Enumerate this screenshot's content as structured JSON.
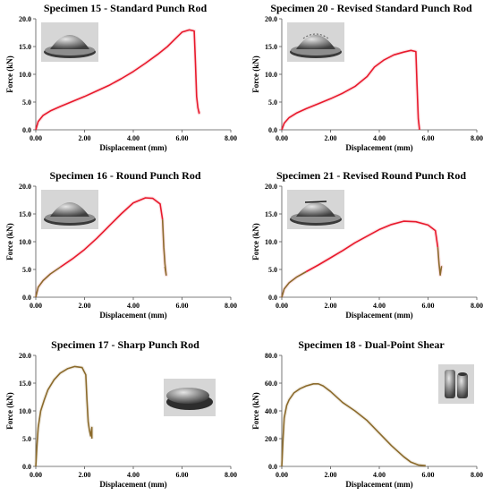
{
  "chart_data": [
    {
      "type": "line",
      "title": "Specimen 15 - Standard Punch Rod",
      "xlabel": "Displacement (mm)",
      "ylabel": "Force (kN)",
      "xlim": [
        0,
        8
      ],
      "ylim": [
        0,
        20
      ],
      "xticks": [
        "0.00",
        "2.00",
        "4.00",
        "6.00",
        "8.00"
      ],
      "yticks": [
        "0.0",
        "5.0",
        "10.0",
        "15.0",
        "20.0"
      ],
      "line_color": "#e8192c",
      "inset_photo": "dome-specimen",
      "series": [
        {
          "x": [
            0,
            0.1,
            0.3,
            0.6,
            1.0,
            1.5,
            2.0,
            2.5,
            3.0,
            3.5,
            4.0,
            4.5,
            5.0,
            5.4,
            5.7,
            6.0,
            6.3,
            6.5,
            6.55,
            6.6,
            6.65,
            6.7,
            6.7
          ],
          "y": [
            0,
            1.5,
            2.6,
            3.4,
            4.2,
            5.1,
            6.0,
            7.0,
            8.0,
            9.2,
            10.5,
            12.0,
            13.6,
            15.0,
            16.3,
            17.6,
            18.0,
            17.8,
            12.0,
            6.0,
            4.0,
            3.0,
            3.3
          ]
        }
      ]
    },
    {
      "type": "line",
      "title": "Specimen 20 - Revised Standard Punch Rod",
      "xlabel": "Displacement (mm)",
      "ylabel": "Force (kN)",
      "xlim": [
        0,
        8
      ],
      "ylim": [
        0,
        20
      ],
      "xticks": [
        "0.00",
        "2.00",
        "4.00",
        "6.00",
        "8.00"
      ],
      "yticks": [
        "0.0",
        "5.0",
        "10.0",
        "15.0",
        "20.0"
      ],
      "line_color": "#e8192c",
      "inset_photo": "dome-specimen-textured",
      "series": [
        {
          "x": [
            0,
            0.1,
            0.3,
            0.6,
            1.0,
            1.5,
            2.0,
            2.5,
            3.0,
            3.5,
            3.8,
            4.2,
            4.6,
            5.0,
            5.3,
            5.5,
            5.55,
            5.6,
            5.65
          ],
          "y": [
            0,
            1.2,
            2.2,
            3.0,
            3.8,
            4.7,
            5.6,
            6.6,
            7.8,
            9.6,
            11.3,
            12.6,
            13.5,
            14.0,
            14.3,
            14.1,
            8.0,
            2.0,
            0.0
          ]
        }
      ]
    },
    {
      "type": "line",
      "title": "Specimen 16 - Round Punch Rod",
      "xlabel": "Displacement (mm)",
      "ylabel": "Force (kN)",
      "xlim": [
        0,
        8
      ],
      "ylim": [
        0,
        20
      ],
      "xticks": [
        "0.00",
        "2.00",
        "4.00",
        "6.00",
        "8.00"
      ],
      "yticks": [
        "0.0",
        "5.0",
        "10.0",
        "15.0",
        "20.0"
      ],
      "line_color": "#e8192c",
      "tail_color": "#8b6a2b",
      "inset_photo": "dome-specimen",
      "series": [
        {
          "x": [
            0,
            0.1,
            0.3,
            0.6,
            1.0,
            1.5,
            2.0,
            2.5,
            3.0,
            3.5,
            4.0,
            4.5,
            4.8,
            5.1,
            5.2,
            5.25,
            5.3,
            5.35,
            5.3
          ],
          "y": [
            0,
            1.8,
            3.0,
            4.2,
            5.4,
            6.9,
            8.6,
            10.6,
            12.8,
            15.0,
            17.0,
            17.9,
            17.8,
            16.8,
            14.0,
            9.0,
            6.0,
            4.0,
            5.5
          ]
        }
      ]
    },
    {
      "type": "line",
      "title": "Specimen 21 - Revised Round Punch Rod",
      "xlabel": "Displacement (mm)",
      "ylabel": "Force (kN)",
      "xlim": [
        0,
        8
      ],
      "ylim": [
        0,
        20
      ],
      "xticks": [
        "0.00",
        "2.00",
        "4.00",
        "6.00",
        "8.00"
      ],
      "yticks": [
        "0.0",
        "5.0",
        "10.0",
        "15.0",
        "20.0"
      ],
      "line_color": "#e8192c",
      "tail_color": "#8b6a2b",
      "inset_photo": "dome-specimen-cracked",
      "series": [
        {
          "x": [
            0,
            0.1,
            0.3,
            0.6,
            1.0,
            1.5,
            2.0,
            2.5,
            3.0,
            3.5,
            4.0,
            4.5,
            5.0,
            5.5,
            6.0,
            6.3,
            6.4,
            6.45,
            6.5,
            6.55,
            6.5
          ],
          "y": [
            0,
            1.5,
            2.6,
            3.6,
            4.6,
            5.8,
            7.1,
            8.4,
            9.8,
            11.0,
            12.2,
            13.1,
            13.7,
            13.6,
            13.0,
            12.0,
            9.0,
            6.0,
            4.0,
            5.5,
            4.0
          ]
        }
      ]
    },
    {
      "type": "line",
      "title": "Specimen 17 - Sharp Punch Rod",
      "xlabel": "Displacement (mm)",
      "ylabel": "Force (kN)",
      "xlim": [
        0,
        8
      ],
      "ylim": [
        0,
        20
      ],
      "xticks": [
        "0.00",
        "2.00",
        "4.00",
        "6.00",
        "8.00"
      ],
      "yticks": [
        "0.0",
        "5.0",
        "10.0",
        "15.0",
        "20.0"
      ],
      "line_color": "#8b6a2b",
      "inset_photo": "flat-disc-specimen",
      "series": [
        {
          "x": [
            0,
            0.05,
            0.1,
            0.2,
            0.35,
            0.5,
            0.75,
            1.0,
            1.3,
            1.6,
            1.9,
            2.05,
            2.1,
            2.15,
            2.2,
            2.25,
            2.3,
            2.3
          ],
          "y": [
            0,
            4.0,
            7.0,
            10.0,
            12.0,
            13.8,
            15.6,
            16.8,
            17.6,
            18.0,
            17.8,
            16.5,
            12.0,
            8.0,
            6.5,
            5.5,
            7.0,
            5.0
          ]
        }
      ]
    },
    {
      "type": "line",
      "title": "Specimen 18 - Dual-Point Shear",
      "xlabel": "Displacement (mm)",
      "ylabel": "Force (kN)",
      "xlim": [
        0,
        8
      ],
      "ylim": [
        0,
        80
      ],
      "xticks": [
        "0.00",
        "2.00",
        "4.00",
        "6.00",
        "8.00"
      ],
      "yticks": [
        "0.0",
        "20.0",
        "40.0",
        "60.0",
        "80.0"
      ],
      "line_color": "#8b6a2b",
      "inset_photo": "cylindrical-specimens",
      "series": [
        {
          "x": [
            0,
            0.05,
            0.1,
            0.2,
            0.3,
            0.5,
            0.75,
            1.0,
            1.3,
            1.5,
            1.7,
            2.0,
            2.5,
            3.0,
            3.5,
            4.0,
            4.5,
            5.0,
            5.3,
            5.6,
            5.9
          ],
          "y": [
            0,
            20,
            35,
            44,
            48,
            53,
            56,
            58,
            59.5,
            59.5,
            58,
            54,
            46,
            40,
            33,
            24,
            15,
            7,
            3,
            1,
            0.5
          ]
        }
      ]
    }
  ]
}
